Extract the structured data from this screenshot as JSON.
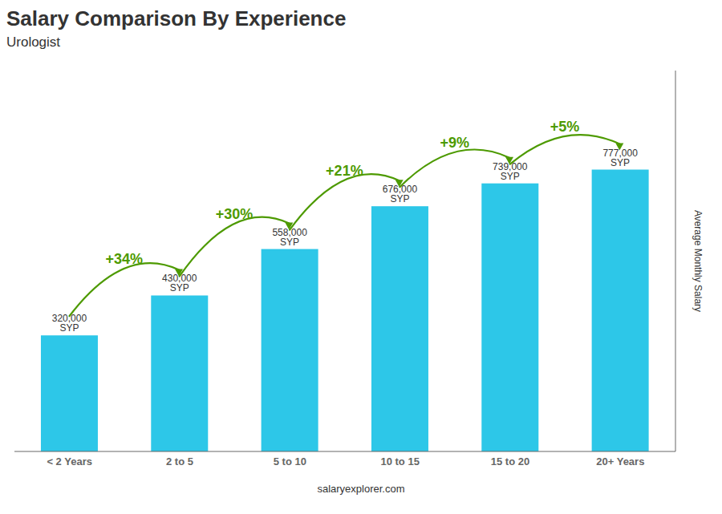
{
  "chart_data": {
    "type": "bar",
    "title": "Salary Comparison By Experience",
    "subtitle": "Urologist",
    "ylabel": "Average Monthly Salary",
    "categories": [
      "< 2 Years",
      "2 to 5",
      "5 to 10",
      "10 to 15",
      "15 to 20",
      "20+ Years"
    ],
    "values": [
      320000,
      430000,
      558000,
      676000,
      739000,
      777000
    ],
    "value_labels": [
      "320,000 SYP",
      "430,000 SYP",
      "558,000 SYP",
      "676,000 SYP",
      "739,000 SYP",
      "777,000 SYP"
    ],
    "data_labels": true,
    "annotations": [
      "+34%",
      "+30%",
      "+21%",
      "+9%",
      "+5%"
    ],
    "footer": "salaryexplorer.com",
    "color": "#2DC7E8",
    "ylim": [
      0,
      1050000
    ],
    "tick_labels": "x",
    "grid": false
  }
}
